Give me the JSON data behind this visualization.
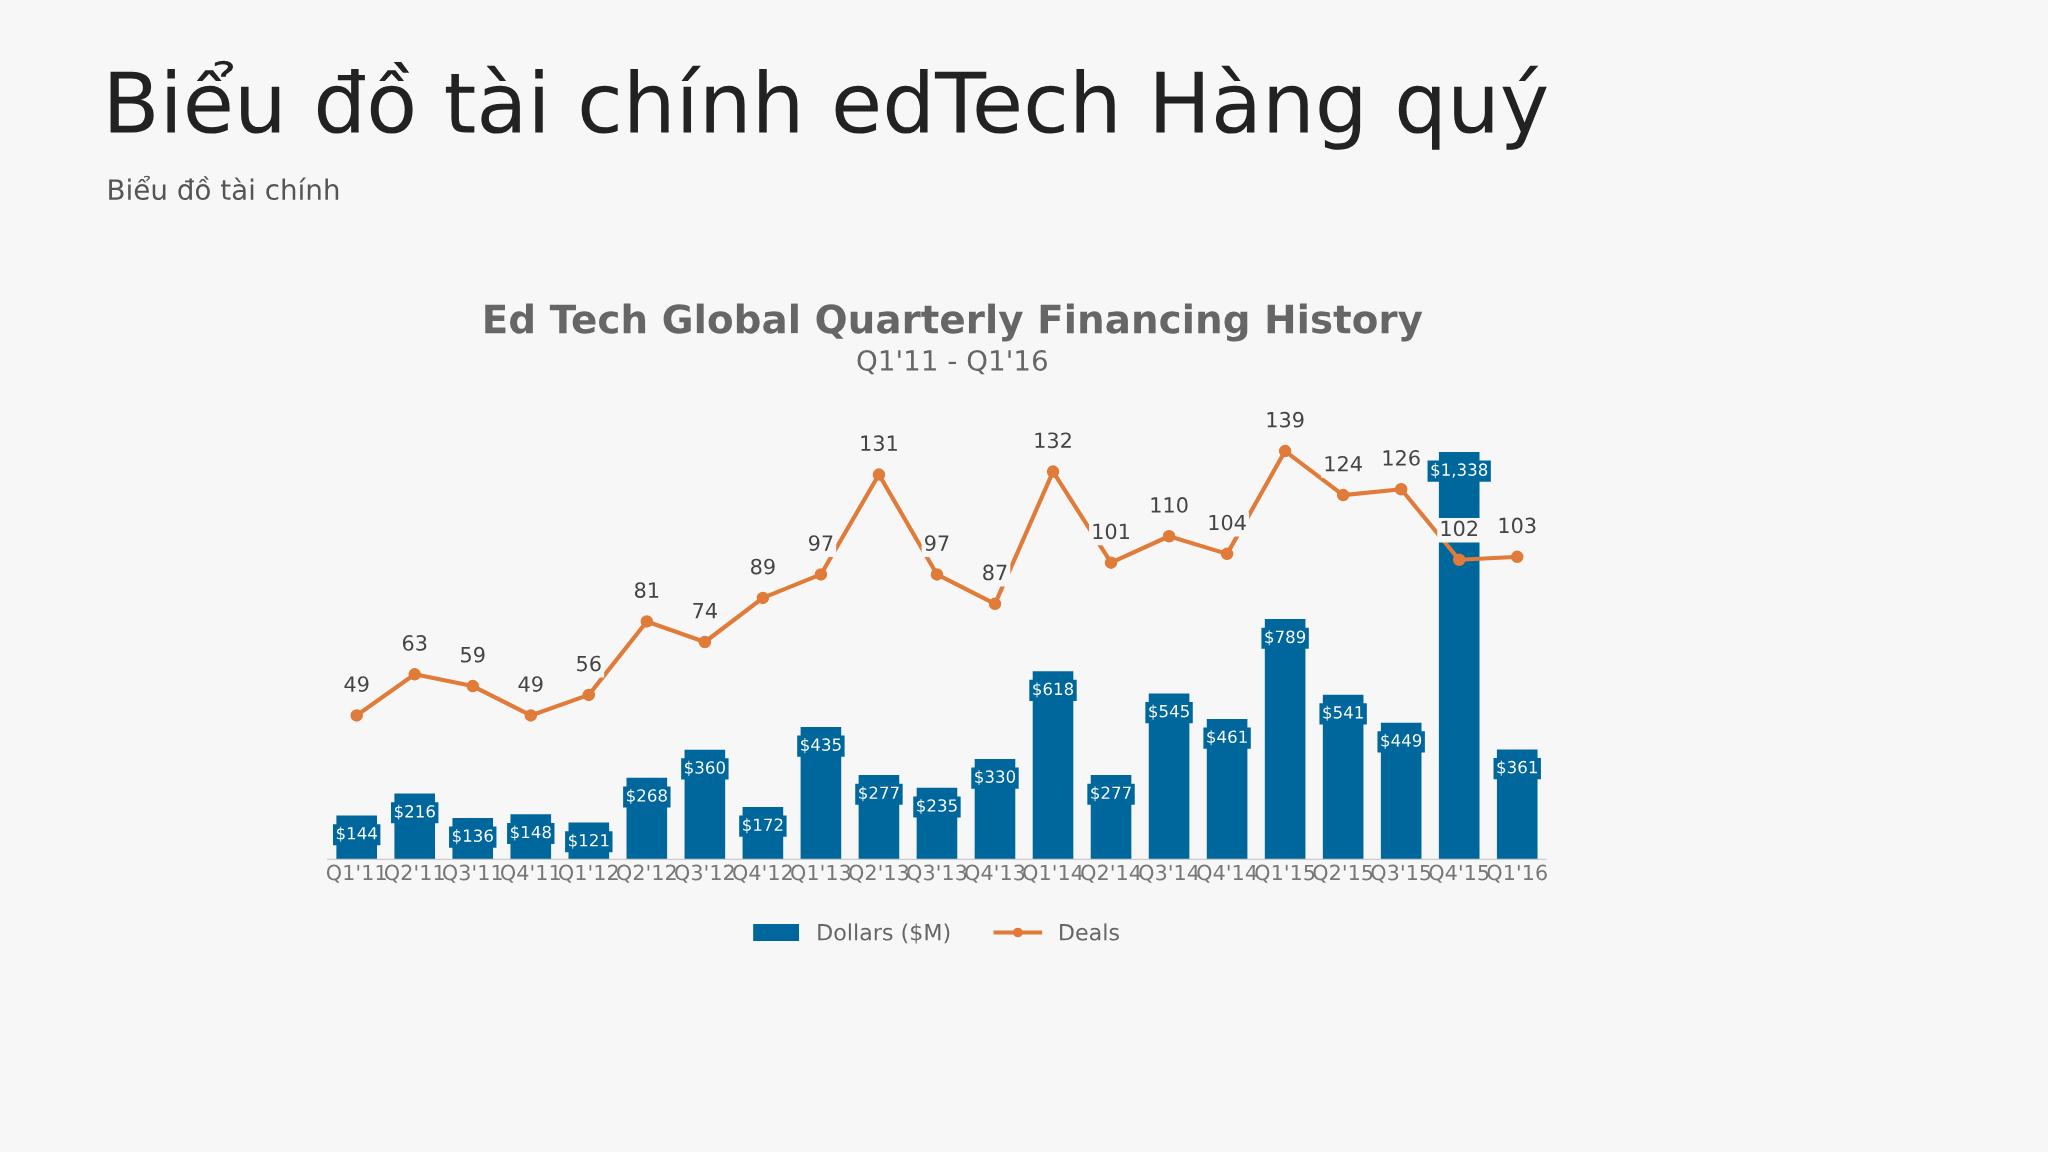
{
  "chart_data": {
    "type": "bar",
    "title": "Biểu đồ tài chính edTech Hàng quý",
    "subtitle": "Biểu đồ tài chính",
    "annotations": [
      "Ed Tech Global Quarterly Financing History",
      "Q1'11 - Q1'16"
    ],
    "categories": [
      "Q1'11",
      "Q2'11",
      "Q3'11",
      "Q4'11",
      "Q1'12",
      "Q2'12",
      "Q3'12",
      "Q4'12",
      "Q1'13",
      "Q2'13",
      "Q3'13",
      "Q4'13",
      "Q1'14",
      "Q2'14",
      "Q3'14",
      "Q4'14",
      "Q1'15",
      "Q2'15",
      "Q3'15",
      "Q4'15",
      "Q1'16"
    ],
    "series": [
      {
        "name": "Dollars ($M)",
        "color": "#00679c",
        "values": [
          144,
          216,
          136,
          148,
          121,
          268,
          360,
          172,
          435,
          277,
          235,
          330,
          618,
          277,
          545,
          461,
          789,
          541,
          449,
          1338,
          361
        ],
        "value_labels": [
          "$144",
          "$216",
          "$136",
          "$148",
          "$121",
          "$268",
          "$360",
          "$172",
          "$435",
          "$277",
          "$235",
          "$330",
          "$618",
          "$277",
          "$545",
          "$461",
          "$789",
          "$541",
          "$449",
          "$1,338",
          "$361"
        ]
      },
      {
        "name": "Deals",
        "type": "line",
        "axis": "y2",
        "color": "#e07b39",
        "values": [
          49,
          63,
          59,
          49,
          56,
          81,
          74,
          89,
          97,
          131,
          97,
          87,
          132,
          101,
          110,
          104,
          139,
          124,
          126,
          102,
          103
        ],
        "value_labels": [
          "49",
          "63",
          "59",
          "49",
          "56",
          "81",
          "74",
          "89",
          "97",
          "131",
          "97",
          "87",
          "132",
          "101",
          "110",
          "104",
          "139",
          "124",
          "126",
          "102",
          "103"
        ]
      }
    ],
    "tick_labels": "x",
    "legend": "bottom",
    "marker": "circle",
    "line_style": "solid"
  }
}
